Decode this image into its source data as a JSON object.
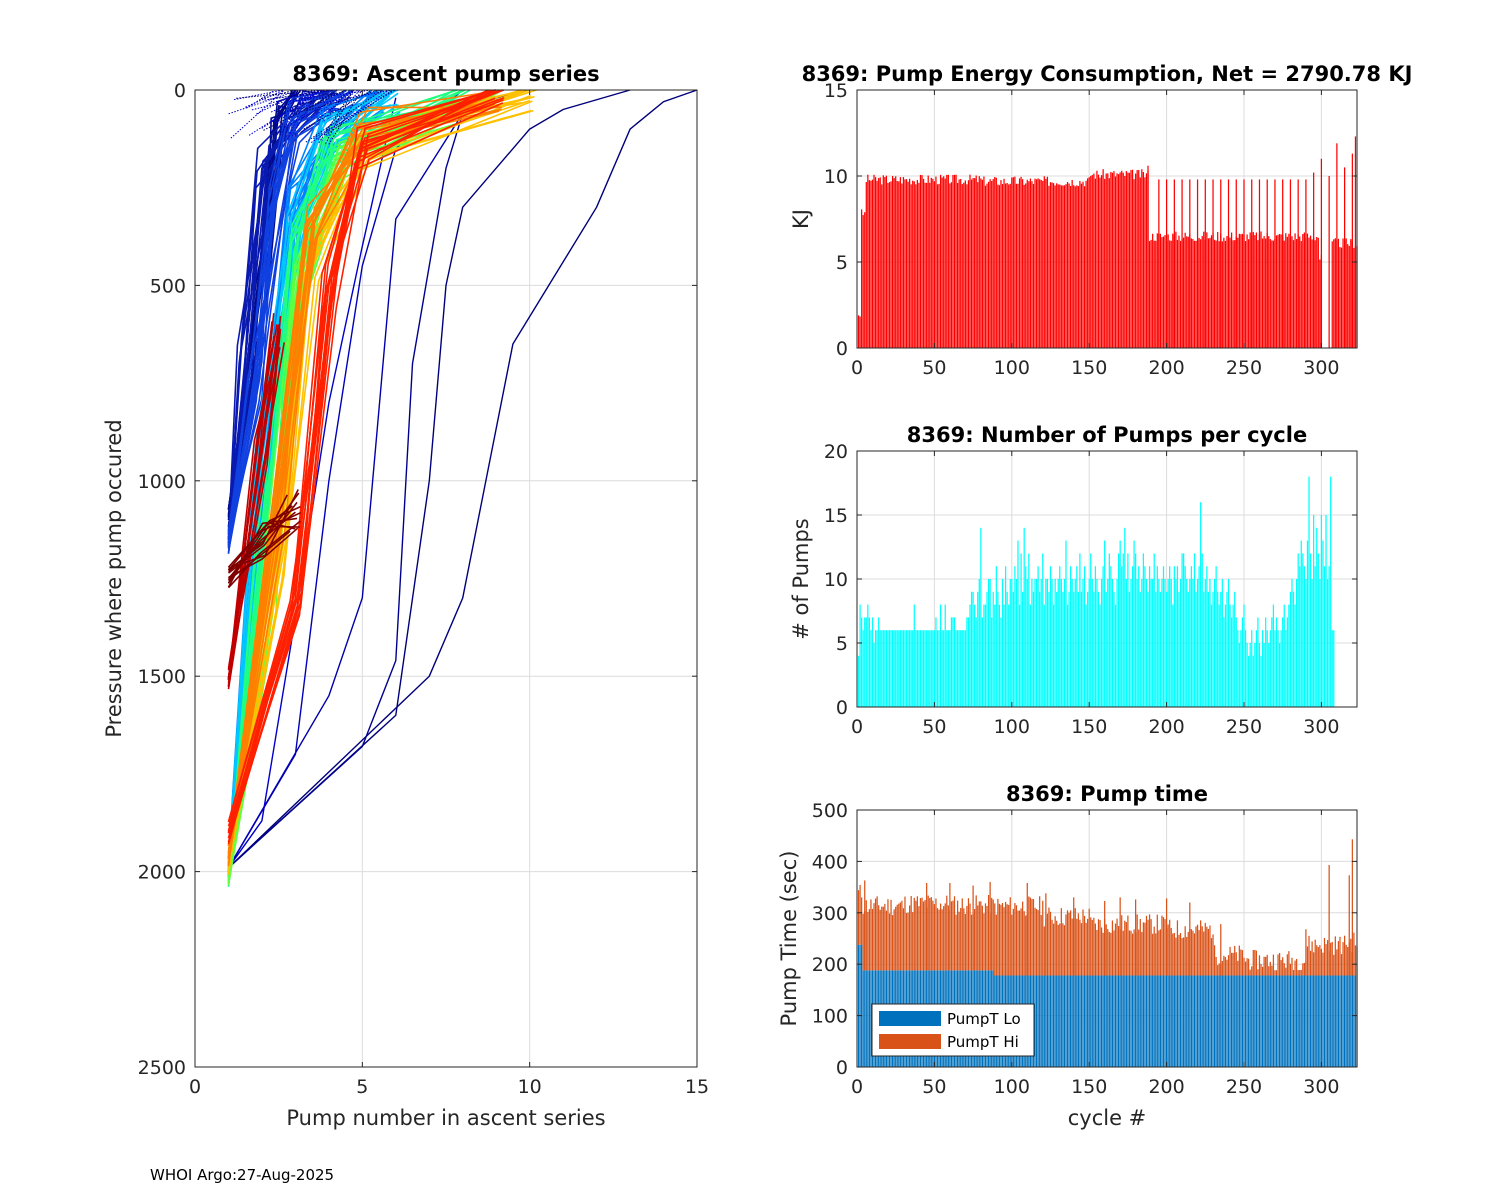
{
  "footer": "WHOI Argo:27-Aug-2025",
  "colors": {
    "energy": "#ff0000",
    "pumps": "#00ffff",
    "pumpLo": "#0072bd",
    "pumpHi": "#d95319",
    "grid": "#dcdcdc",
    "axis": "#262626"
  },
  "chart_data": [
    {
      "id": "ascent",
      "type": "line",
      "title": "8369: Ascent pump series",
      "xlabel": "Pump number in ascent series",
      "ylabel": "Pressure where pump occured",
      "xlim": [
        0,
        15
      ],
      "ylim": [
        0,
        2500
      ],
      "y_reversed": true,
      "xticks": [
        0,
        5,
        10,
        15
      ],
      "yticks": [
        0,
        500,
        1000,
        1500,
        2000,
        2500
      ],
      "grid": true,
      "series": [
        {
          "name": "outlier-1",
          "color": "#00007a",
          "x": [
            1,
            7,
            8,
            9.5,
            12,
            13,
            14,
            15
          ],
          "y": [
            1990,
            1500,
            1300,
            650,
            300,
            100,
            30,
            0
          ]
        },
        {
          "name": "outlier-2",
          "color": "#00007a",
          "x": [
            1,
            6,
            7,
            7.5,
            8,
            10,
            11,
            13
          ],
          "y": [
            1990,
            1600,
            1000,
            500,
            300,
            100,
            50,
            0
          ]
        },
        {
          "name": "outlier-3",
          "color": "#00008f",
          "x": [
            1,
            5,
            6,
            6.5,
            7.5,
            8,
            9,
            10
          ],
          "y": [
            1990,
            1680,
            1460,
            700,
            200,
            60,
            20,
            0
          ]
        },
        {
          "name": "outlier-4",
          "color": "#0000a8",
          "x": [
            1,
            4,
            5,
            6,
            8,
            9
          ],
          "y": [
            1990,
            1550,
            1300,
            330,
            60,
            0
          ]
        },
        {
          "name": "outlier-5",
          "color": "#0000b8",
          "x": [
            1,
            3,
            4,
            5,
            6,
            8
          ],
          "y": [
            1990,
            1700,
            1000,
            450,
            150,
            0
          ]
        },
        {
          "name": "outlier-6",
          "color": "#0000c8",
          "x": [
            1,
            2,
            3,
            4,
            5,
            6
          ],
          "y": [
            1990,
            1870,
            1350,
            800,
            400,
            20
          ]
        },
        {
          "name": "series-dense-1",
          "color": "#000a8a",
          "x": [
            1,
            2,
            2.5,
            3
          ],
          "y": [
            1100,
            500,
            50,
            0
          ]
        },
        {
          "name": "series-dense-2",
          "color": "#0a1ab0",
          "x": [
            1,
            1.5,
            2,
            3,
            4
          ],
          "y": [
            1150,
            700,
            200,
            60,
            0
          ]
        },
        {
          "name": "series-dense-3",
          "color": "#1040e0",
          "x": [
            1,
            1.8,
            2.4,
            3,
            4.5
          ],
          "y": [
            1160,
            750,
            300,
            80,
            0
          ]
        },
        {
          "name": "series-dense-4",
          "color": "#0080ff",
          "x": [
            1,
            2,
            3,
            4,
            5.5
          ],
          "y": [
            1990,
            1000,
            300,
            100,
            0
          ]
        },
        {
          "name": "series-dense-5",
          "color": "#00c8ff",
          "x": [
            1,
            2,
            3,
            4,
            6
          ],
          "y": [
            1990,
            950,
            350,
            120,
            0
          ]
        },
        {
          "name": "series-dense-6",
          "color": "#20ff80",
          "x": [
            1,
            2,
            3,
            4,
            8
          ],
          "y": [
            2010,
            1200,
            400,
            150,
            0
          ]
        },
        {
          "name": "series-dense-7",
          "color": "#60ff40",
          "x": [
            1,
            2.2,
            3.2,
            4.5,
            9
          ],
          "y": [
            2010,
            1300,
            450,
            180,
            0
          ]
        },
        {
          "name": "series-dense-8",
          "color": "#ffc000",
          "x": [
            1,
            2.5,
            3.5,
            5,
            10
          ],
          "y": [
            1980,
            1200,
            450,
            150,
            0
          ]
        },
        {
          "name": "series-dense-9",
          "color": "#ff8000",
          "x": [
            1,
            2.5,
            3.5,
            5,
            9
          ],
          "y": [
            1960,
            1100,
            350,
            100,
            0
          ]
        },
        {
          "name": "series-dense-10",
          "color": "#ff2000",
          "x": [
            1,
            3,
            4,
            5,
            9
          ],
          "y": [
            1900,
            1300,
            500,
            150,
            0
          ]
        },
        {
          "name": "series-dense-11",
          "color": "#c00000",
          "x": [
            1,
            2,
            2.5
          ],
          "y": [
            1510,
            900,
            600
          ]
        },
        {
          "name": "series-dense-12",
          "color": "#800000",
          "x": [
            1,
            2,
            3
          ],
          "y": [
            1250,
            1150,
            1080
          ]
        }
      ]
    },
    {
      "id": "energy",
      "type": "bar",
      "title": "8369: Pump Energy Consumption,  Net = 2790.78 KJ",
      "xlabel": "",
      "ylabel": "KJ",
      "xlim": [
        0,
        323
      ],
      "ylim": [
        0,
        15
      ],
      "xticks": [
        0,
        50,
        100,
        150,
        200,
        250,
        300
      ],
      "yticks": [
        0,
        5,
        10,
        15
      ],
      "grid": true,
      "segments": [
        {
          "from": 1,
          "to": 2,
          "value": 2
        },
        {
          "from": 3,
          "to": 5,
          "value": 7.8
        },
        {
          "from": 6,
          "to": 80,
          "value": 9.8
        },
        {
          "from": 81,
          "to": 150,
          "value": 9.7
        },
        {
          "from": 151,
          "to": 188,
          "value": 10.1
        },
        {
          "from": 189,
          "to": 298,
          "value": 6.5
        },
        {
          "from": 299,
          "to": 300,
          "value": 5.2
        },
        {
          "from": 301,
          "to": 306,
          "value": 0
        },
        {
          "from": 307,
          "to": 323,
          "value": 6.1
        }
      ],
      "spikes": [
        [
          188,
          10.6
        ],
        [
          195,
          9.8
        ],
        [
          200,
          9.8
        ],
        [
          205,
          9.8
        ],
        [
          210,
          9.8
        ],
        [
          215,
          9.8
        ],
        [
          220,
          9.8
        ],
        [
          225,
          9.8
        ],
        [
          230,
          9.8
        ],
        [
          235,
          9.8
        ],
        [
          240,
          9.8
        ],
        [
          245,
          9.8
        ],
        [
          250,
          9.8
        ],
        [
          255,
          9.8
        ],
        [
          260,
          9.8
        ],
        [
          265,
          9.8
        ],
        [
          270,
          9.8
        ],
        [
          275,
          9.8
        ],
        [
          280,
          9.8
        ],
        [
          285,
          9.8
        ],
        [
          290,
          9.8
        ],
        [
          295,
          10.2
        ],
        [
          300,
          11.0
        ],
        [
          305,
          10.0
        ],
        [
          310,
          11.9
        ],
        [
          315,
          10.5
        ],
        [
          320,
          11.3
        ],
        [
          322,
          12.3
        ]
      ]
    },
    {
      "id": "pumps",
      "type": "bar",
      "title": "8369: Number of Pumps per cycle",
      "xlabel": "",
      "ylabel": "# of Pumps",
      "xlim": [
        0,
        323
      ],
      "ylim": [
        0,
        20
      ],
      "xticks": [
        0,
        50,
        100,
        150,
        200,
        250,
        300
      ],
      "yticks": [
        0,
        5,
        10,
        15,
        20
      ],
      "grid": true,
      "values": [
        4,
        8,
        7,
        6,
        7,
        7,
        8,
        7,
        6,
        7,
        5,
        6,
        6,
        7,
        6,
        6,
        6,
        6,
        6,
        6,
        6,
        6,
        6,
        6,
        6,
        6,
        6,
        6,
        6,
        6,
        6,
        6,
        6,
        6,
        6,
        6,
        8,
        6,
        6,
        6,
        6,
        6,
        6,
        6,
        6,
        6,
        6,
        6,
        6,
        6,
        7,
        6,
        6,
        8,
        6,
        6,
        8,
        6,
        6,
        6,
        7,
        7,
        7,
        6,
        6,
        6,
        6,
        6,
        6,
        6,
        7,
        7,
        8,
        9,
        9,
        8,
        7,
        9,
        10,
        14,
        7,
        8,
        8,
        9,
        10,
        10,
        7,
        9,
        8,
        11,
        9,
        8,
        7,
        10,
        8,
        11,
        9,
        8,
        10,
        10,
        9,
        11,
        10,
        13,
        8,
        12,
        9,
        14,
        11,
        10,
        12,
        8,
        10,
        9,
        10,
        10,
        11,
        9,
        10,
        12,
        8,
        10,
        10,
        9,
        11,
        10,
        8,
        10,
        9,
        10,
        11,
        10,
        9,
        10,
        13,
        8,
        9,
        11,
        10,
        9,
        10,
        11,
        9,
        12,
        9,
        10,
        11,
        8,
        9,
        10,
        12,
        10,
        9,
        11,
        10,
        9,
        8,
        10,
        11,
        13,
        9,
        10,
        12,
        11,
        10,
        9,
        8,
        10,
        12,
        13,
        11,
        12,
        14,
        10,
        12,
        9,
        10,
        11,
        13,
        12,
        10,
        11,
        9,
        10,
        12,
        11,
        10,
        9,
        11,
        10,
        10,
        12,
        9,
        11,
        10,
        9,
        10,
        11,
        10,
        9,
        10,
        11,
        10,
        8,
        11,
        10,
        11,
        9,
        10,
        12,
        12,
        11,
        10,
        9,
        10,
        11,
        10,
        12,
        9,
        10,
        11,
        16,
        12,
        9,
        10,
        11,
        9,
        10,
        8,
        9,
        10,
        11,
        9,
        8,
        9,
        10,
        7,
        8,
        9,
        10,
        8,
        7,
        8,
        9,
        7,
        6,
        5,
        6,
        7,
        8,
        6,
        5,
        4,
        5,
        6,
        4,
        5,
        6,
        7,
        5,
        4,
        6,
        5,
        7,
        6,
        5,
        6,
        7,
        8,
        6,
        7,
        6,
        5,
        6,
        7,
        8,
        6,
        7,
        8,
        9,
        10,
        9,
        8,
        10,
        12,
        11,
        13,
        12,
        11,
        10,
        13,
        18,
        12,
        10,
        15,
        11,
        14,
        12,
        10,
        15,
        13,
        11,
        15,
        10,
        11,
        18,
        6,
        6
      ]
    },
    {
      "id": "pumptime",
      "type": "bar",
      "title": "8369: Pump time",
      "xlabel": "cycle #",
      "ylabel": "Pump Time (sec)",
      "xlim": [
        0,
        323
      ],
      "ylim": [
        0,
        500
      ],
      "xticks": [
        0,
        50,
        100,
        150,
        200,
        250,
        300
      ],
      "yticks": [
        0,
        100,
        200,
        300,
        400,
        500
      ],
      "grid": true,
      "legend": {
        "location": "bottom-left",
        "entries": [
          "PumpT Lo",
          "PumpT Hi"
        ]
      },
      "series": [
        {
          "name": "PumpT Lo",
          "segments": [
            {
              "from": 1,
              "to": 3,
              "value": 238
            },
            {
              "from": 4,
              "to": 88,
              "value": 188
            },
            {
              "from": 89,
              "to": 323,
              "value": 178
            }
          ]
        },
        {
          "name": "PumpT Hi",
          "segments": [
            {
              "from": 1,
              "to": 3,
              "value": 100
            },
            {
              "from": 4,
              "to": 30,
              "value": 126
            },
            {
              "from": 31,
              "to": 60,
              "value": 130
            },
            {
              "from": 61,
              "to": 88,
              "value": 127
            },
            {
              "from": 89,
              "to": 120,
              "value": 135
            },
            {
              "from": 121,
              "to": 150,
              "value": 115
            },
            {
              "from": 151,
              "to": 200,
              "value": 100
            },
            {
              "from": 201,
              "to": 230,
              "value": 90
            },
            {
              "from": 231,
              "to": 250,
              "value": 40
            },
            {
              "from": 251,
              "to": 290,
              "value": 30
            },
            {
              "from": 291,
              "to": 315,
              "value": 60
            },
            {
              "from": 316,
              "to": 323,
              "value": 65
            }
          ]
        }
      ],
      "spikes": [
        [
          5,
          175
        ],
        [
          45,
          170
        ],
        [
          60,
          170
        ],
        [
          75,
          165
        ],
        [
          86,
          172
        ],
        [
          110,
          180
        ],
        [
          122,
          160
        ],
        [
          140,
          152
        ],
        [
          160,
          145
        ],
        [
          170,
          152
        ],
        [
          180,
          148
        ],
        [
          200,
          150
        ],
        [
          215,
          142
        ],
        [
          235,
          100
        ],
        [
          290,
          90
        ],
        [
          305,
          215
        ],
        [
          318,
          195
        ],
        [
          320,
          265
        ]
      ]
    }
  ]
}
